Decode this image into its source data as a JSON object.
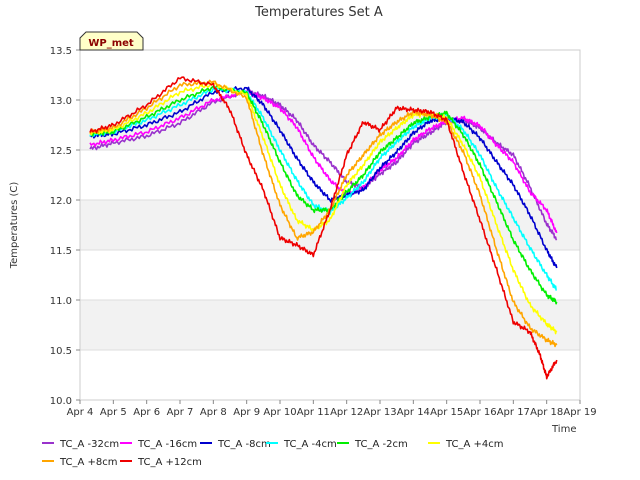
{
  "chart_data": {
    "type": "line",
    "title": "Temperatures Set A",
    "xlabel": "Time",
    "ylabel": "Temperatures (C)",
    "badge": "WP_met",
    "xlim": [
      4,
      19
    ],
    "ylim": [
      10.0,
      13.5
    ],
    "x_ticks": [
      4,
      5,
      6,
      7,
      8,
      9,
      10,
      11,
      12,
      13,
      14,
      15,
      16,
      17,
      18,
      19
    ],
    "x_tick_labels": [
      "Apr 4",
      "Apr 5",
      "Apr 6",
      "Apr 7",
      "Apr 8",
      "Apr 9",
      "Apr 10",
      "Apr 11",
      "Apr 12",
      "Apr 13",
      "Apr 14",
      "Apr 15",
      "Apr 16",
      "Apr 17",
      "Apr 18",
      "Apr 19"
    ],
    "y_ticks": [
      10.0,
      10.5,
      11.0,
      11.5,
      12.0,
      12.5,
      13.0,
      13.5
    ],
    "y_tick_labels": [
      "10.0",
      "10.5",
      "11.0",
      "11.5",
      "12.0",
      "12.5",
      "13.0",
      "13.5"
    ],
    "bands": [
      [
        10.5,
        11.0
      ],
      [
        11.5,
        12.0
      ],
      [
        12.5,
        13.0
      ]
    ],
    "band_color": "#f2f2f2",
    "grid": true,
    "legend_position": "bottom",
    "series": [
      {
        "name": "TC_A -32cm",
        "color": "#9932cc",
        "points": [
          [
            4.3,
            12.51
          ],
          [
            5,
            12.57
          ],
          [
            6,
            12.64
          ],
          [
            7,
            12.77
          ],
          [
            8,
            12.98
          ],
          [
            9,
            13.09
          ],
          [
            9.5,
            13.04
          ],
          [
            10,
            12.95
          ],
          [
            10.5,
            12.8
          ],
          [
            11,
            12.55
          ],
          [
            11.5,
            12.38
          ],
          [
            12,
            12.18
          ],
          [
            12.5,
            12.12
          ],
          [
            13,
            12.26
          ],
          [
            13.5,
            12.38
          ],
          [
            14,
            12.57
          ],
          [
            14.5,
            12.67
          ],
          [
            15,
            12.78
          ],
          [
            15.5,
            12.8
          ],
          [
            16,
            12.72
          ],
          [
            16.5,
            12.57
          ],
          [
            17,
            12.45
          ],
          [
            17.5,
            12.13
          ],
          [
            18,
            11.76
          ],
          [
            18.3,
            11.61
          ]
        ]
      },
      {
        "name": "TC_A -16cm",
        "color": "#ff00ff",
        "points": [
          [
            4.3,
            12.55
          ],
          [
            5,
            12.6
          ],
          [
            6,
            12.68
          ],
          [
            7,
            12.82
          ],
          [
            8,
            13.0
          ],
          [
            9,
            13.08
          ],
          [
            9.5,
            13.02
          ],
          [
            10,
            12.92
          ],
          [
            10.5,
            12.73
          ],
          [
            11,
            12.43
          ],
          [
            11.5,
            12.2
          ],
          [
            12,
            12.05
          ],
          [
            12.5,
            12.12
          ],
          [
            13,
            12.3
          ],
          [
            13.5,
            12.42
          ],
          [
            14,
            12.6
          ],
          [
            14.5,
            12.71
          ],
          [
            15,
            12.79
          ],
          [
            15.5,
            12.82
          ],
          [
            16,
            12.74
          ],
          [
            16.5,
            12.55
          ],
          [
            17,
            12.38
          ],
          [
            17.5,
            12.08
          ],
          [
            18,
            11.9
          ],
          [
            18.3,
            11.67
          ]
        ]
      },
      {
        "name": "TC_A -8cm",
        "color": "#0000cd",
        "points": [
          [
            4.3,
            12.64
          ],
          [
            5,
            12.66
          ],
          [
            6,
            12.75
          ],
          [
            7,
            12.88
          ],
          [
            8,
            13.08
          ],
          [
            9,
            13.12
          ],
          [
            9.5,
            12.95
          ],
          [
            10,
            12.7
          ],
          [
            10.5,
            12.42
          ],
          [
            11,
            12.18
          ],
          [
            11.5,
            12.0
          ],
          [
            12,
            12.05
          ],
          [
            12.5,
            12.1
          ],
          [
            13,
            12.32
          ],
          [
            13.5,
            12.48
          ],
          [
            14,
            12.67
          ],
          [
            14.5,
            12.79
          ],
          [
            15,
            12.82
          ],
          [
            15.5,
            12.78
          ],
          [
            16,
            12.62
          ],
          [
            16.5,
            12.38
          ],
          [
            17,
            12.15
          ],
          [
            17.5,
            11.85
          ],
          [
            18,
            11.5
          ],
          [
            18.3,
            11.32
          ]
        ]
      },
      {
        "name": "TC_A -4cm",
        "color": "#00ffff",
        "points": [
          [
            4.3,
            12.65
          ],
          [
            5,
            12.68
          ],
          [
            6,
            12.8
          ],
          [
            7,
            12.95
          ],
          [
            8,
            13.11
          ],
          [
            9,
            13.08
          ],
          [
            9.5,
            12.82
          ],
          [
            10,
            12.5
          ],
          [
            10.5,
            12.2
          ],
          [
            11,
            11.95
          ],
          [
            11.5,
            11.88
          ],
          [
            12,
            12.02
          ],
          [
            12.5,
            12.18
          ],
          [
            13,
            12.42
          ],
          [
            13.5,
            12.58
          ],
          [
            14,
            12.73
          ],
          [
            14.5,
            12.82
          ],
          [
            15,
            12.85
          ],
          [
            15.5,
            12.7
          ],
          [
            16,
            12.45
          ],
          [
            16.5,
            12.12
          ],
          [
            17,
            11.82
          ],
          [
            17.5,
            11.52
          ],
          [
            18,
            11.25
          ],
          [
            18.3,
            11.1
          ]
        ]
      },
      {
        "name": "TC_A -2cm",
        "color": "#00ee00",
        "points": [
          [
            4.3,
            12.66
          ],
          [
            5,
            12.68
          ],
          [
            6,
            12.83
          ],
          [
            7,
            13.0
          ],
          [
            8,
            13.13
          ],
          [
            9,
            13.07
          ],
          [
            9.5,
            12.75
          ],
          [
            10,
            12.38
          ],
          [
            10.5,
            12.05
          ],
          [
            11,
            11.9
          ],
          [
            11.5,
            11.9
          ],
          [
            12,
            12.08
          ],
          [
            12.5,
            12.25
          ],
          [
            13,
            12.48
          ],
          [
            13.5,
            12.62
          ],
          [
            14,
            12.77
          ],
          [
            14.5,
            12.83
          ],
          [
            15,
            12.87
          ],
          [
            15.5,
            12.65
          ],
          [
            16,
            12.35
          ],
          [
            16.5,
            11.98
          ],
          [
            17,
            11.6
          ],
          [
            17.5,
            11.3
          ],
          [
            18,
            11.05
          ],
          [
            18.3,
            10.98
          ]
        ]
      },
      {
        "name": "TC_A +4cm",
        "color": "#ffff00",
        "points": [
          [
            4.3,
            12.67
          ],
          [
            5,
            12.7
          ],
          [
            6,
            12.87
          ],
          [
            7,
            13.08
          ],
          [
            8,
            13.16
          ],
          [
            9,
            13.05
          ],
          [
            9.5,
            12.62
          ],
          [
            10,
            12.15
          ],
          [
            10.5,
            11.8
          ],
          [
            11,
            11.7
          ],
          [
            11.5,
            11.8
          ],
          [
            12,
            12.15
          ],
          [
            12.5,
            12.35
          ],
          [
            13,
            12.58
          ],
          [
            13.5,
            12.72
          ],
          [
            14,
            12.85
          ],
          [
            14.5,
            12.86
          ],
          [
            15,
            12.82
          ],
          [
            15.5,
            12.55
          ],
          [
            16,
            12.22
          ],
          [
            16.5,
            11.75
          ],
          [
            17,
            11.3
          ],
          [
            17.5,
            10.95
          ],
          [
            18,
            10.76
          ],
          [
            18.3,
            10.68
          ]
        ]
      },
      {
        "name": "TC_A +8cm",
        "color": "#ffa500",
        "points": [
          [
            4.3,
            12.68
          ],
          [
            5,
            12.72
          ],
          [
            6,
            12.92
          ],
          [
            7,
            13.15
          ],
          [
            8,
            13.18
          ],
          [
            9,
            13.02
          ],
          [
            9.5,
            12.45
          ],
          [
            10,
            11.95
          ],
          [
            10.5,
            11.62
          ],
          [
            11,
            11.68
          ],
          [
            11.5,
            11.9
          ],
          [
            12,
            12.25
          ],
          [
            12.5,
            12.45
          ],
          [
            13,
            12.65
          ],
          [
            13.5,
            12.78
          ],
          [
            14,
            12.88
          ],
          [
            14.5,
            12.85
          ],
          [
            15,
            12.78
          ],
          [
            15.5,
            12.48
          ],
          [
            16,
            12.05
          ],
          [
            16.5,
            11.5
          ],
          [
            17,
            10.98
          ],
          [
            17.5,
            10.72
          ],
          [
            18,
            10.6
          ],
          [
            18.3,
            10.55
          ]
        ]
      },
      {
        "name": "TC_A +12cm",
        "color": "#ee0000",
        "points": [
          [
            4.3,
            12.68
          ],
          [
            5,
            12.75
          ],
          [
            6,
            12.95
          ],
          [
            7,
            13.22
          ],
          [
            8,
            13.15
          ],
          [
            8.5,
            12.9
          ],
          [
            9,
            12.45
          ],
          [
            9.5,
            12.1
          ],
          [
            10,
            11.62
          ],
          [
            10.5,
            11.55
          ],
          [
            11,
            11.45
          ],
          [
            11.5,
            11.9
          ],
          [
            12,
            12.45
          ],
          [
            12.5,
            12.78
          ],
          [
            13,
            12.7
          ],
          [
            13.5,
            12.92
          ],
          [
            14,
            12.9
          ],
          [
            14.5,
            12.88
          ],
          [
            15,
            12.8
          ],
          [
            15.5,
            12.28
          ],
          [
            16,
            11.8
          ],
          [
            16.5,
            11.3
          ],
          [
            17,
            10.78
          ],
          [
            17.5,
            10.68
          ],
          [
            17.8,
            10.45
          ],
          [
            18,
            10.23
          ],
          [
            18.3,
            10.4
          ]
        ]
      }
    ]
  }
}
